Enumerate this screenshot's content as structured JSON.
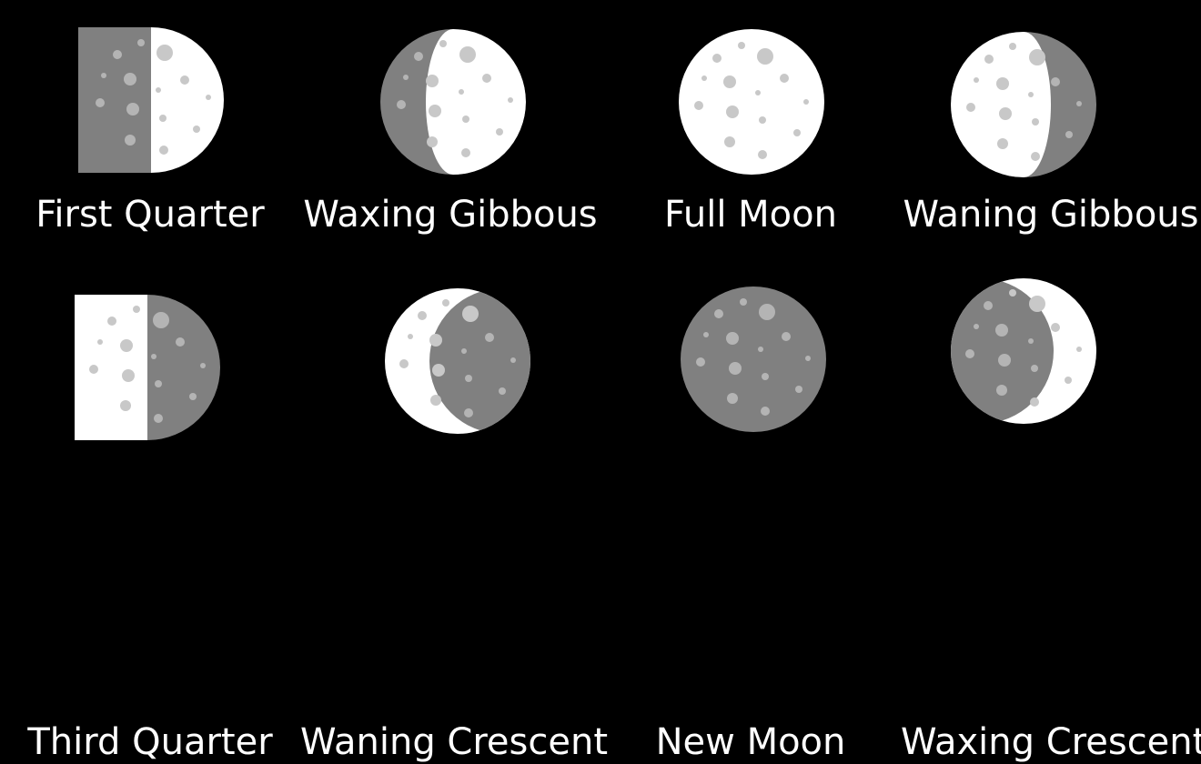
{
  "colors": {
    "background": "#000000",
    "lit": "#ffffff",
    "shadow": "#808080",
    "crater_on_lit": "#c8c8c8",
    "crater_on_shadow": "#b4b4b4",
    "label": "#ffffff"
  },
  "phases": [
    {
      "id": "first-quarter",
      "label": "First Quarter"
    },
    {
      "id": "waxing-gibbous",
      "label": "Waxing Gibbous"
    },
    {
      "id": "full-moon",
      "label": "Full Moon"
    },
    {
      "id": "waning-gibbous",
      "label": "Waning Gibbous"
    },
    {
      "id": "third-quarter",
      "label": "Third Quarter"
    },
    {
      "id": "waning-crescent",
      "label": "Waning Crescent"
    },
    {
      "id": "new-moon",
      "label": "New Moon"
    },
    {
      "id": "waxing-crescent",
      "label": "Waxing Crescent"
    }
  ]
}
